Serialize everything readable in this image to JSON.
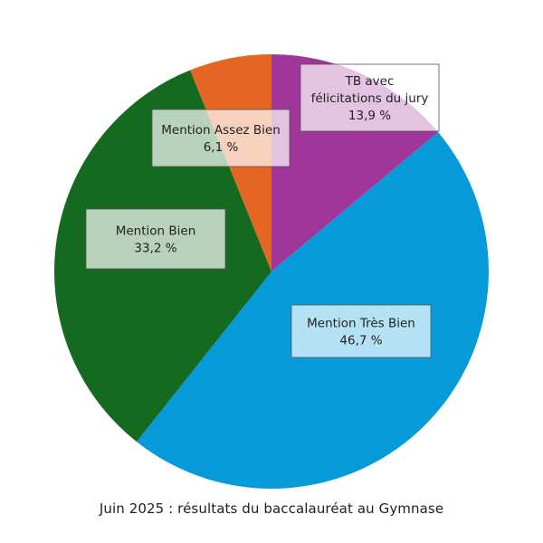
{
  "chart_data": {
    "type": "pie",
    "caption": "Juin 2025 : résultats du baccalauréat au Gymnase",
    "slices": [
      {
        "label_lines": [
          "TB avec",
          "félicitations du jury"
        ],
        "value": 13.9,
        "value_text": "13,9 %",
        "color": "#a0369a"
      },
      {
        "label_lines": [
          "Mention Très Bien"
        ],
        "value": 46.7,
        "value_text": "46,7 %",
        "color": "#069bd8"
      },
      {
        "label_lines": [
          "Mention Bien"
        ],
        "value": 33.2,
        "value_text": "33,2 %",
        "color": "#146a1f"
      },
      {
        "label_lines": [
          "Mention Assez Bien"
        ],
        "value": 6.1,
        "value_text": "6,1 %",
        "color": "#e56623"
      }
    ],
    "start_angle_deg": 0,
    "direction": "clockwise"
  }
}
